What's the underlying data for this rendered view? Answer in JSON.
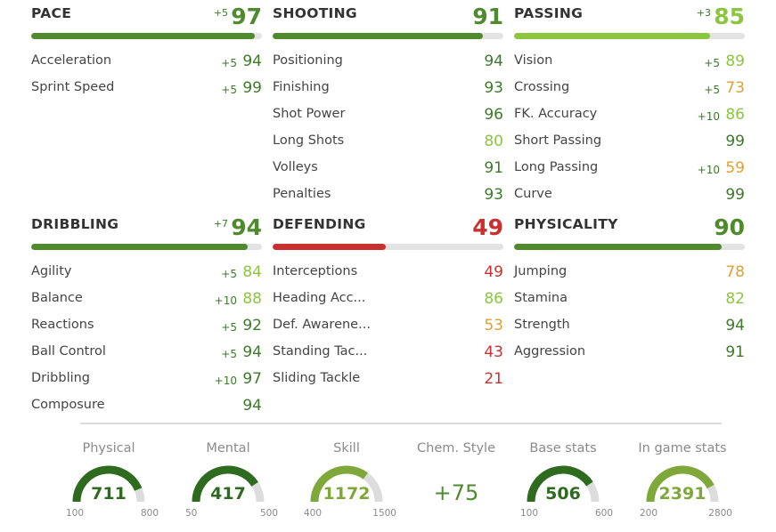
{
  "colors": {
    "dark_green": "#3d7a2a",
    "light_green": "#8cc63f",
    "orange": "#e0a030",
    "red": "#c8312f",
    "track": "#e3e3e3"
  },
  "categories": [
    {
      "name": "PACE",
      "bonus": "+5",
      "value": "97",
      "bar": 0.97,
      "color": "#4f8a2e",
      "attributes": [
        {
          "name": "Acceleration",
          "bonus": "+5",
          "value": "94",
          "color": "#3d7a2a"
        },
        {
          "name": "Sprint Speed",
          "bonus": "+5",
          "value": "99",
          "color": "#3d7a2a"
        }
      ]
    },
    {
      "name": "SHOOTING",
      "bonus": "",
      "value": "91",
      "bar": 0.91,
      "color": "#4f8a2e",
      "attributes": [
        {
          "name": "Positioning",
          "bonus": "",
          "value": "94",
          "color": "#3d7a2a"
        },
        {
          "name": "Finishing",
          "bonus": "",
          "value": "93",
          "color": "#3d7a2a"
        },
        {
          "name": "Shot Power",
          "bonus": "",
          "value": "96",
          "color": "#3d7a2a"
        },
        {
          "name": "Long Shots",
          "bonus": "",
          "value": "80",
          "color": "#8cc63f"
        },
        {
          "name": "Volleys",
          "bonus": "",
          "value": "91",
          "color": "#3d7a2a"
        },
        {
          "name": "Penalties",
          "bonus": "",
          "value": "93",
          "color": "#3d7a2a"
        }
      ]
    },
    {
      "name": "PASSING",
      "bonus": "+3",
      "value": "85",
      "bar": 0.85,
      "color": "#8cc63f",
      "attributes": [
        {
          "name": "Vision",
          "bonus": "+5",
          "value": "89",
          "color": "#8cc63f"
        },
        {
          "name": "Crossing",
          "bonus": "+5",
          "value": "73",
          "color": "#e0a030"
        },
        {
          "name": "FK. Accuracy",
          "bonus": "+10",
          "value": "86",
          "color": "#8cc63f"
        },
        {
          "name": "Short Passing",
          "bonus": "",
          "value": "99",
          "color": "#3d7a2a"
        },
        {
          "name": "Long Passing",
          "bonus": "+10",
          "value": "59",
          "color": "#e0a030"
        },
        {
          "name": "Curve",
          "bonus": "",
          "value": "99",
          "color": "#3d7a2a"
        }
      ]
    },
    {
      "name": "DRIBBLING",
      "bonus": "+7",
      "value": "94",
      "bar": 0.94,
      "color": "#4f8a2e",
      "attributes": [
        {
          "name": "Agility",
          "bonus": "+5",
          "value": "84",
          "color": "#8cc63f"
        },
        {
          "name": "Balance",
          "bonus": "+10",
          "value": "88",
          "color": "#8cc63f"
        },
        {
          "name": "Reactions",
          "bonus": "+5",
          "value": "92",
          "color": "#3d7a2a"
        },
        {
          "name": "Ball Control",
          "bonus": "+5",
          "value": "94",
          "color": "#3d7a2a"
        },
        {
          "name": "Dribbling",
          "bonus": "+10",
          "value": "97",
          "color": "#3d7a2a"
        },
        {
          "name": "Composure",
          "bonus": "",
          "value": "94",
          "color": "#3d7a2a"
        }
      ]
    },
    {
      "name": "DEFENDING",
      "bonus": "",
      "value": "49",
      "bar": 0.49,
      "color": "#c8312f",
      "attributes": [
        {
          "name": "Interceptions",
          "bonus": "",
          "value": "49",
          "color": "#c8312f"
        },
        {
          "name": "Heading Acc...",
          "bonus": "",
          "value": "86",
          "color": "#8cc63f"
        },
        {
          "name": "Def. Awarene...",
          "bonus": "",
          "value": "53",
          "color": "#e0a030"
        },
        {
          "name": "Standing Tac...",
          "bonus": "",
          "value": "43",
          "color": "#c8312f"
        },
        {
          "name": "Sliding Tackle",
          "bonus": "",
          "value": "21",
          "color": "#c8312f"
        }
      ]
    },
    {
      "name": "PHYSICALITY",
      "bonus": "",
      "value": "90",
      "bar": 0.9,
      "color": "#4f8a2e",
      "attributes": [
        {
          "name": "Jumping",
          "bonus": "",
          "value": "78",
          "color": "#e0a030"
        },
        {
          "name": "Stamina",
          "bonus": "",
          "value": "82",
          "color": "#8cc63f"
        },
        {
          "name": "Strength",
          "bonus": "",
          "value": "94",
          "color": "#3d7a2a"
        },
        {
          "name": "Aggression",
          "bonus": "",
          "value": "91",
          "color": "#3d7a2a"
        }
      ]
    }
  ],
  "gauges": [
    {
      "label": "Physical",
      "value": "711",
      "min": "100",
      "max": "800",
      "fraction": 0.873,
      "color": "#2e6b1e"
    },
    {
      "label": "Mental",
      "value": "417",
      "min": "50",
      "max": "500",
      "fraction": 0.816,
      "color": "#2e6b1e"
    },
    {
      "label": "Skill",
      "value": "1172",
      "min": "400",
      "max": "1500",
      "fraction": 0.702,
      "color": "#7fa83a"
    },
    {
      "label": "Base stats",
      "value": "506",
      "min": "100",
      "max": "600",
      "fraction": 0.812,
      "color": "#2e6b1e"
    },
    {
      "label": "In game stats",
      "value": "2391",
      "min": "200",
      "max": "2800",
      "fraction": 0.843,
      "color": "#7fa83a"
    }
  ],
  "chem_style": {
    "label": "Chem. Style",
    "value": "+75"
  }
}
